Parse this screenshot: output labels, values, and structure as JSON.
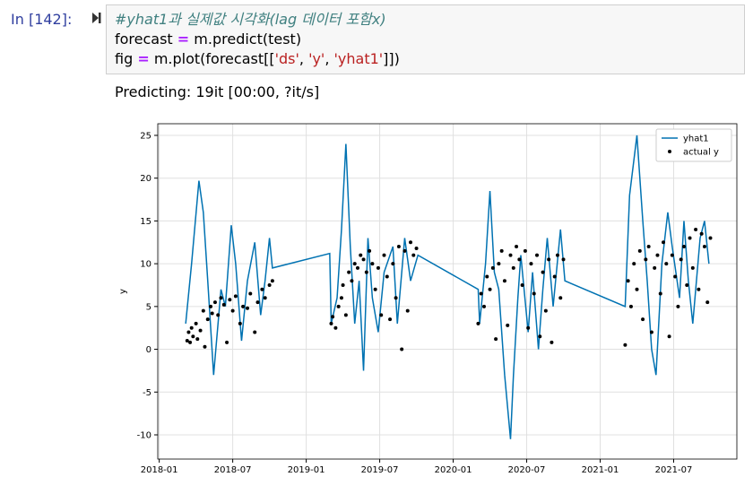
{
  "prompt": "In [142]:",
  "code": {
    "lines": [
      [
        {
          "text": "#yhat1과 실제값 시각화(lag 데이터 포함x)",
          "style": "comment"
        }
      ],
      [
        {
          "text": "forecast ",
          "style": "plain"
        },
        {
          "text": "=",
          "style": "op"
        },
        {
          "text": " m.predict(test)",
          "style": "plain"
        }
      ],
      [
        {
          "text": "fig ",
          "style": "plain"
        },
        {
          "text": "=",
          "style": "op"
        },
        {
          "text": " m.plot(forecast[[",
          "style": "plain"
        },
        {
          "text": "'ds'",
          "style": "string"
        },
        {
          "text": ", ",
          "style": "plain"
        },
        {
          "text": "'y'",
          "style": "string"
        },
        {
          "text": ", ",
          "style": "plain"
        },
        {
          "text": "'yhat1'",
          "style": "string"
        },
        {
          "text": "]])",
          "style": "plain"
        }
      ]
    ]
  },
  "output": "Predicting: 19it [00:00, ?it/s]",
  "chart_data": {
    "type": "line",
    "y_label": "y",
    "grid": true,
    "legend": "upper right",
    "xlim": [
      2017.99,
      2021.93
    ],
    "ylim": [
      -12.83,
      26.36
    ],
    "xticks": [
      {
        "value": 2018.0,
        "label": "2018-01"
      },
      {
        "value": 2018.5,
        "label": "2018-07"
      },
      {
        "value": 2019.0,
        "label": "2019-01"
      },
      {
        "value": 2019.5,
        "label": "2019-07"
      },
      {
        "value": 2020.0,
        "label": "2020-01"
      },
      {
        "value": 2020.5,
        "label": "2020-07"
      },
      {
        "value": 2021.0,
        "label": "2021-01"
      },
      {
        "value": 2021.5,
        "label": "2021-07"
      }
    ],
    "yticks": [
      -10,
      -5,
      0,
      5,
      10,
      15,
      20,
      25
    ],
    "series": [
      {
        "name": "yhat1",
        "type": "line",
        "color": "#0072B2",
        "x": [
          2018.18,
          2018.22,
          2018.27,
          2018.3,
          2018.33,
          2018.37,
          2018.39,
          2018.42,
          2018.45,
          2018.49,
          2018.52,
          2018.56,
          2018.6,
          2018.65,
          2018.69,
          2018.72,
          2018.75,
          2018.77,
          2019.16,
          2019.17,
          2019.21,
          2019.24,
          2019.27,
          2019.3,
          2019.33,
          2019.36,
          2019.39,
          2019.42,
          2019.45,
          2019.49,
          2019.53,
          2019.59,
          2019.62,
          2019.67,
          2019.71,
          2019.76,
          2020.17,
          2020.18,
          2020.22,
          2020.25,
          2020.28,
          2020.31,
          2020.35,
          2020.39,
          2020.41,
          2020.44,
          2020.46,
          2020.51,
          2020.54,
          2020.58,
          2020.61,
          2020.64,
          2020.68,
          2020.73,
          2020.76,
          2021.17,
          2021.2,
          2021.25,
          2021.29,
          2021.32,
          2021.35,
          2021.38,
          2021.42,
          2021.46,
          2021.49,
          2021.54,
          2021.57,
          2021.6,
          2021.63,
          2021.68,
          2021.71,
          2021.74
        ],
        "values": [
          3,
          10,
          19.7,
          16,
          8,
          -3,
          1,
          7,
          5,
          14.5,
          10,
          1,
          8,
          12.5,
          4,
          8,
          13,
          9.5,
          11.2,
          3,
          6,
          14,
          24,
          12,
          3,
          8,
          -2.5,
          13,
          6,
          2,
          9,
          12,
          3,
          13,
          8,
          11,
          7,
          3,
          10,
          18.5,
          9,
          7,
          -3,
          -10.5,
          -3,
          6,
          11,
          2,
          9,
          0,
          7,
          13,
          5,
          14,
          8,
          5,
          18,
          25,
          15,
          8,
          0,
          -3,
          10,
          16,
          12,
          6,
          15,
          8,
          3,
          13,
          15,
          10
        ]
      },
      {
        "name": "actual y",
        "type": "scatter",
        "color": "#000000",
        "x": [
          2018.19,
          2018.2,
          2018.21,
          2018.22,
          2018.23,
          2018.25,
          2018.26,
          2018.28,
          2018.3,
          2018.31,
          2018.33,
          2018.35,
          2018.36,
          2018.38,
          2018.4,
          2018.42,
          2018.44,
          2018.46,
          2018.48,
          2018.5,
          2018.52,
          2018.55,
          2018.57,
          2018.6,
          2018.62,
          2018.65,
          2018.67,
          2018.7,
          2018.72,
          2018.75,
          2018.77,
          2019.17,
          2019.18,
          2019.2,
          2019.22,
          2019.24,
          2019.25,
          2019.27,
          2019.29,
          2019.31,
          2019.33,
          2019.35,
          2019.37,
          2019.39,
          2019.41,
          2019.43,
          2019.45,
          2019.47,
          2019.49,
          2019.51,
          2019.53,
          2019.55,
          2019.57,
          2019.59,
          2019.61,
          2019.63,
          2019.65,
          2019.67,
          2019.69,
          2019.71,
          2019.73,
          2019.75,
          2020.17,
          2020.19,
          2020.21,
          2020.23,
          2020.25,
          2020.27,
          2020.29,
          2020.31,
          2020.33,
          2020.35,
          2020.37,
          2020.39,
          2020.41,
          2020.43,
          2020.45,
          2020.47,
          2020.49,
          2020.51,
          2020.53,
          2020.55,
          2020.57,
          2020.59,
          2020.61,
          2020.63,
          2020.65,
          2020.67,
          2020.69,
          2020.71,
          2020.73,
          2020.75,
          2021.17,
          2021.19,
          2021.21,
          2021.23,
          2021.25,
          2021.27,
          2021.29,
          2021.31,
          2021.33,
          2021.35,
          2021.37,
          2021.39,
          2021.41,
          2021.43,
          2021.45,
          2021.47,
          2021.49,
          2021.51,
          2021.53,
          2021.55,
          2021.57,
          2021.59,
          2021.61,
          2021.63,
          2021.65,
          2021.67,
          2021.69,
          2021.71,
          2021.73,
          2021.75
        ],
        "values": [
          1.0,
          2.0,
          0.8,
          2.5,
          1.5,
          3.0,
          1.2,
          2.2,
          4.5,
          0.3,
          3.5,
          5.0,
          4.2,
          5.5,
          4.0,
          6.0,
          5.2,
          0.8,
          5.8,
          4.5,
          6.2,
          3.0,
          5.0,
          4.8,
          6.5,
          2.0,
          5.5,
          7.0,
          6.0,
          7.5,
          8.0,
          3.0,
          3.8,
          2.5,
          5.0,
          6.0,
          7.5,
          4.0,
          9.0,
          8.0,
          10.0,
          9.5,
          11.0,
          10.5,
          9.0,
          11.5,
          10.0,
          7.0,
          9.5,
          4.0,
          11.0,
          8.5,
          3.5,
          10.0,
          6.0,
          12.0,
          0.0,
          11.5,
          4.5,
          12.5,
          11.0,
          11.8,
          3.0,
          6.5,
          5.0,
          8.5,
          7.0,
          9.5,
          1.2,
          10.0,
          11.5,
          8.0,
          2.8,
          11.0,
          9.5,
          12.0,
          10.5,
          7.5,
          11.5,
          2.5,
          10.0,
          6.5,
          11.0,
          1.5,
          9.0,
          4.5,
          10.5,
          0.8,
          8.5,
          11.0,
          6.0,
          10.5,
          0.5,
          8.0,
          5.0,
          10.0,
          7.0,
          11.5,
          3.5,
          10.5,
          12.0,
          2.0,
          9.5,
          11.0,
          6.5,
          12.5,
          10.0,
          1.5,
          11.0,
          8.5,
          5.0,
          10.5,
          12.0,
          7.5,
          13.0,
          9.5,
          14.0,
          7.0,
          13.5,
          12.0,
          5.5,
          13.0
        ]
      }
    ]
  }
}
